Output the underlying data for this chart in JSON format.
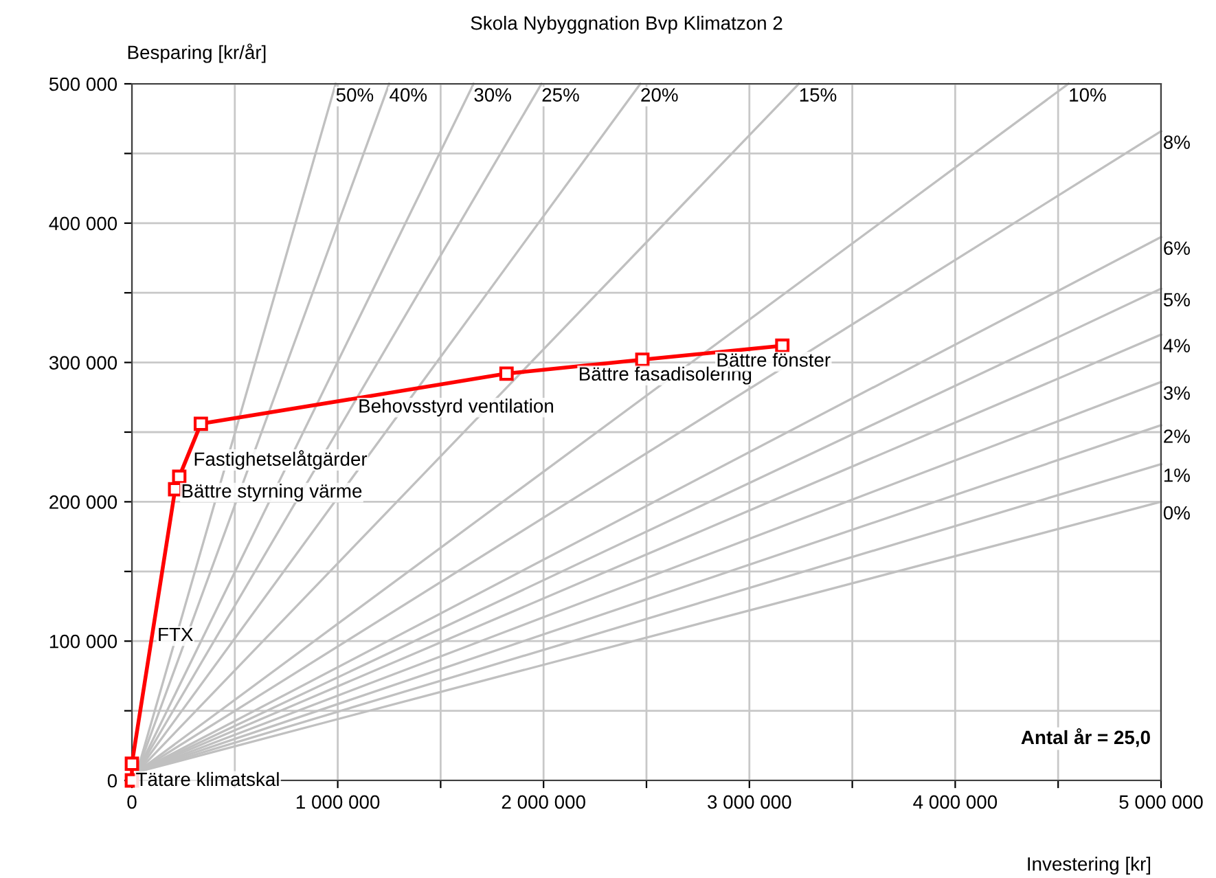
{
  "chart_data": {
    "type": "line",
    "title": "Skola Nybyggnation Bvp Klimatzon 2",
    "xlabel": "Investering [kr]",
    "ylabel": "Besparing [kr/år]",
    "xlim": [
      0,
      5000000
    ],
    "ylim": [
      0,
      500000
    ],
    "xticks": [
      0,
      {
        "value": 500000,
        "label": null
      },
      {
        "value": 1000000,
        "label": "1 000 000"
      },
      {
        "value": 1500000,
        "label": null
      },
      {
        "value": 2000000,
        "label": "2 000 000"
      },
      {
        "value": 2500000,
        "label": null
      },
      {
        "value": 3000000,
        "label": "3 000 000"
      },
      {
        "value": 3500000,
        "label": null
      },
      {
        "value": 4000000,
        "label": "4 000 000"
      },
      {
        "value": 4500000,
        "label": null
      },
      {
        "value": 5000000,
        "label": "5 000 000"
      }
    ],
    "yticks": [
      0,
      {
        "value": 50000,
        "label": null
      },
      {
        "value": 100000,
        "label": "100 000"
      },
      {
        "value": 150000,
        "label": null
      },
      {
        "value": 200000,
        "label": "200 000"
      },
      {
        "value": 250000,
        "label": null
      },
      {
        "value": 300000,
        "label": "300 000"
      },
      {
        "value": 350000,
        "label": null
      },
      {
        "value": 400000,
        "label": "400 000"
      },
      {
        "value": 450000,
        "label": null
      },
      {
        "value": 500000,
        "label": "500 000"
      }
    ],
    "grid": true,
    "legend": false,
    "series": [
      {
        "name": "50%",
        "color": "#c0c0c0",
        "marker": "none",
        "x": [
          25000,
          990000
        ],
        "values": [
          6000,
          500000
        ]
      },
      {
        "name": "40%",
        "color": "#c0c0c0",
        "marker": "none",
        "x": [
          25000,
          1250000
        ],
        "values": [
          6000,
          500000
        ]
      },
      {
        "name": "30%",
        "color": "#c0c0c0",
        "marker": "none",
        "x": [
          25000,
          1660000
        ],
        "values": [
          6000,
          500000
        ]
      },
      {
        "name": "25%",
        "color": "#c0c0c0",
        "marker": "none",
        "x": [
          25000,
          1990000
        ],
        "values": [
          6000,
          500000
        ]
      },
      {
        "name": "20%",
        "color": "#c0c0c0",
        "marker": "none",
        "x": [
          25000,
          2470000
        ],
        "values": [
          6000,
          500000
        ]
      },
      {
        "name": "15%",
        "color": "#c0c0c0",
        "marker": "none",
        "x": [
          25000,
          3240000
        ],
        "values": [
          6000,
          500000
        ]
      },
      {
        "name": "10%",
        "color": "#c0c0c0",
        "marker": "none",
        "x": [
          25000,
          4550000
        ],
        "values": [
          6000,
          500000
        ]
      },
      {
        "name": "8%",
        "color": "#c0c0c0",
        "marker": "none",
        "x": [
          25000,
          5000000
        ],
        "values": [
          6000,
          466000
        ]
      },
      {
        "name": "6%",
        "color": "#c0c0c0",
        "marker": "none",
        "x": [
          25000,
          5000000
        ],
        "values": [
          6000,
          390000
        ]
      },
      {
        "name": "5%",
        "color": "#c0c0c0",
        "marker": "none",
        "x": [
          25000,
          5000000
        ],
        "values": [
          6000,
          353000
        ]
      },
      {
        "name": "4%",
        "color": "#c0c0c0",
        "marker": "none",
        "x": [
          25000,
          5000000
        ],
        "values": [
          6000,
          320000
        ]
      },
      {
        "name": "3%",
        "color": "#c0c0c0",
        "marker": "none",
        "x": [
          25000,
          5000000
        ],
        "values": [
          6000,
          286000
        ]
      },
      {
        "name": "2%",
        "color": "#c0c0c0",
        "marker": "none",
        "x": [
          25000,
          5000000
        ],
        "values": [
          6000,
          255000
        ]
      },
      {
        "name": "1%",
        "color": "#c0c0c0",
        "marker": "none",
        "x": [
          25000,
          5000000
        ],
        "values": [
          6000,
          227000
        ]
      },
      {
        "name": "0%",
        "color": "#c0c0c0",
        "marker": "none",
        "x": [
          25000,
          5000000
        ],
        "values": [
          6000,
          200000
        ]
      },
      {
        "color": "#ff0000",
        "marker": "square",
        "x": [
          0,
          0,
          210000,
          230000,
          335000,
          1820000,
          2480000,
          3160000
        ],
        "values": [
          0,
          12000,
          209000,
          218000,
          256000,
          292000,
          302000,
          312000
        ]
      }
    ],
    "annotations": [
      {
        "text": "Tätare klimatskal",
        "x": 0,
        "y": 6000
      },
      {
        "text": "FTX",
        "x": 105000,
        "y": 110000
      },
      {
        "text": "Bättre styrning värme",
        "x": 220000,
        "y": 213000
      },
      {
        "text": "Fastighetselåtgärder",
        "x": 280000,
        "y": 237000
      },
      {
        "text": "Behovsstyrd ventilation",
        "x": 1080000,
        "y": 274000
      },
      {
        "text": "Bättre fasadisolering",
        "x": 2150000,
        "y": 297000
      },
      {
        "text": "Bättre fönster",
        "x": 2820000,
        "y": 307000
      },
      "Antal år = 25,0"
    ]
  }
}
